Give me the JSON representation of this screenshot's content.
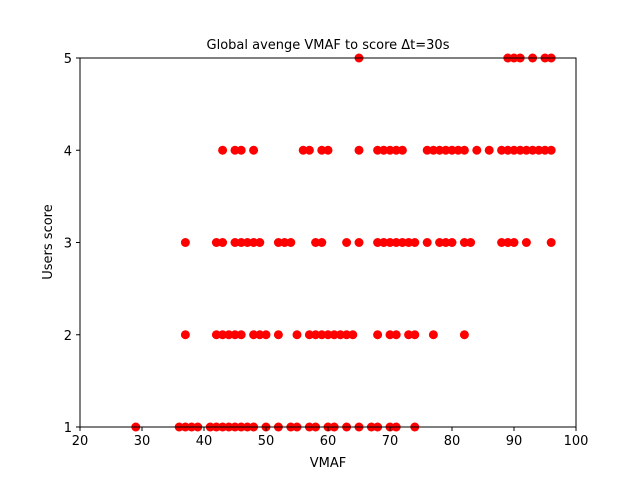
{
  "chart_data": {
    "type": "scatter",
    "title": "Global avenge VMAF to score Δt=30s",
    "xlabel": "VMAF",
    "ylabel": "Users score",
    "xlim": [
      20,
      100
    ],
    "ylim": [
      1,
      5
    ],
    "xticks": [
      20,
      30,
      40,
      50,
      60,
      70,
      80,
      90,
      100
    ],
    "yticks": [
      1,
      2,
      3,
      4,
      5
    ],
    "grid": false,
    "marker_color": "#ff0000",
    "series": [
      {
        "points": [
          [
            29,
            1
          ],
          [
            36,
            1
          ],
          [
            37,
            1
          ],
          [
            38,
            1
          ],
          [
            39,
            1
          ],
          [
            41,
            1
          ],
          [
            42,
            1
          ],
          [
            43,
            1
          ],
          [
            44,
            1
          ],
          [
            45,
            1
          ],
          [
            46,
            1
          ],
          [
            47,
            1
          ],
          [
            48,
            1
          ],
          [
            50,
            1
          ],
          [
            52,
            1
          ],
          [
            54,
            1
          ],
          [
            55,
            1
          ],
          [
            57,
            1
          ],
          [
            58,
            1
          ],
          [
            60,
            1
          ],
          [
            61,
            1
          ],
          [
            63,
            1
          ],
          [
            65,
            1
          ],
          [
            67,
            1
          ],
          [
            68,
            1
          ],
          [
            70,
            1
          ],
          [
            71,
            1
          ],
          [
            74,
            1
          ],
          [
            37,
            2
          ],
          [
            42,
            2
          ],
          [
            43,
            2
          ],
          [
            44,
            2
          ],
          [
            45,
            2
          ],
          [
            46,
            2
          ],
          [
            48,
            2
          ],
          [
            49,
            2
          ],
          [
            50,
            2
          ],
          [
            52,
            2
          ],
          [
            55,
            2
          ],
          [
            57,
            2
          ],
          [
            58,
            2
          ],
          [
            59,
            2
          ],
          [
            60,
            2
          ],
          [
            61,
            2
          ],
          [
            62,
            2
          ],
          [
            63,
            2
          ],
          [
            64,
            2
          ],
          [
            68,
            2
          ],
          [
            70,
            2
          ],
          [
            71,
            2
          ],
          [
            73,
            2
          ],
          [
            74,
            2
          ],
          [
            77,
            2
          ],
          [
            82,
            2
          ],
          [
            37,
            3
          ],
          [
            42,
            3
          ],
          [
            43,
            3
          ],
          [
            45,
            3
          ],
          [
            46,
            3
          ],
          [
            47,
            3
          ],
          [
            48,
            3
          ],
          [
            49,
            3
          ],
          [
            52,
            3
          ],
          [
            53,
            3
          ],
          [
            54,
            3
          ],
          [
            58,
            3
          ],
          [
            59,
            3
          ],
          [
            63,
            3
          ],
          [
            65,
            3
          ],
          [
            68,
            3
          ],
          [
            69,
            3
          ],
          [
            70,
            3
          ],
          [
            71,
            3
          ],
          [
            72,
            3
          ],
          [
            73,
            3
          ],
          [
            74,
            3
          ],
          [
            76,
            3
          ],
          [
            78,
            3
          ],
          [
            79,
            3
          ],
          [
            80,
            3
          ],
          [
            82,
            3
          ],
          [
            83,
            3
          ],
          [
            88,
            3
          ],
          [
            89,
            3
          ],
          [
            90,
            3
          ],
          [
            92,
            3
          ],
          [
            96,
            3
          ],
          [
            43,
            4
          ],
          [
            45,
            4
          ],
          [
            46,
            4
          ],
          [
            48,
            4
          ],
          [
            56,
            4
          ],
          [
            57,
            4
          ],
          [
            59,
            4
          ],
          [
            60,
            4
          ],
          [
            65,
            4
          ],
          [
            68,
            4
          ],
          [
            69,
            4
          ],
          [
            70,
            4
          ],
          [
            71,
            4
          ],
          [
            72,
            4
          ],
          [
            76,
            4
          ],
          [
            77,
            4
          ],
          [
            78,
            4
          ],
          [
            79,
            4
          ],
          [
            80,
            4
          ],
          [
            81,
            4
          ],
          [
            82,
            4
          ],
          [
            84,
            4
          ],
          [
            86,
            4
          ],
          [
            88,
            4
          ],
          [
            89,
            4
          ],
          [
            90,
            4
          ],
          [
            91,
            4
          ],
          [
            92,
            4
          ],
          [
            93,
            4
          ],
          [
            94,
            4
          ],
          [
            95,
            4
          ],
          [
            96,
            4
          ],
          [
            65,
            5
          ],
          [
            89,
            5
          ],
          [
            90,
            5
          ],
          [
            91,
            5
          ],
          [
            93,
            5
          ],
          [
            95,
            5
          ],
          [
            96,
            5
          ]
        ]
      }
    ]
  }
}
